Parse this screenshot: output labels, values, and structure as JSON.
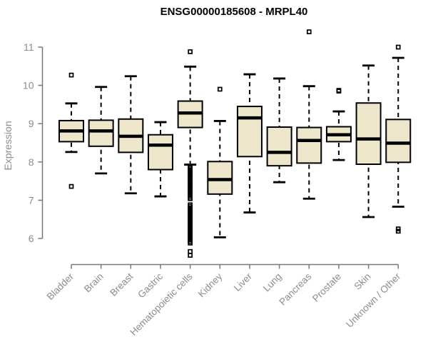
{
  "window": {
    "background": "#FFFFFF"
  },
  "chart_data": {
    "type": "boxplot",
    "title": "ENSG00000185608 - MRPL40",
    "xlabel": "",
    "ylabel": "Expression",
    "y_ticks": [
      6,
      7,
      8,
      9,
      10,
      11
    ],
    "ylim": [
      6,
      11
    ],
    "grid": false,
    "legend_position": "none",
    "categories": [
      "Bladder",
      "Brain",
      "Breast",
      "Gastric",
      "Hematopoietic cells",
      "Kidney",
      "Liver",
      "Lung",
      "Pancreas",
      "Prostate",
      "Skin",
      "Unknown / Other"
    ],
    "series": [
      {
        "name": "Bladder",
        "low": 8.26,
        "q1": 8.53,
        "median": 8.81,
        "q3": 9.08,
        "high": 9.53,
        "outliers": [
          10.27,
          7.36
        ]
      },
      {
        "name": "Brain",
        "low": 7.7,
        "q1": 8.41,
        "median": 8.81,
        "q3": 9.09,
        "high": 9.96,
        "outliers": []
      },
      {
        "name": "Breast",
        "low": 7.18,
        "q1": 8.25,
        "median": 8.67,
        "q3": 9.12,
        "high": 10.24,
        "outliers": []
      },
      {
        "name": "Gastric",
        "low": 7.1,
        "q1": 7.8,
        "median": 8.44,
        "q3": 8.71,
        "high": 9.04,
        "outliers": []
      },
      {
        "name": "Hematopoietic cells",
        "low": 7.93,
        "q1": 8.9,
        "median": 9.28,
        "q3": 9.59,
        "high": 10.49,
        "outliers": [
          10.88,
          7.88,
          7.84,
          7.8,
          7.76,
          7.72,
          7.68,
          7.64,
          7.6,
          7.56,
          7.52,
          7.48,
          7.44,
          7.4,
          7.36,
          7.32,
          7.28,
          7.24,
          7.2,
          7.16,
          7.12,
          7.08,
          7.04,
          6.88,
          6.84,
          6.8,
          6.76,
          6.72,
          6.68,
          6.64,
          6.6,
          6.56,
          6.52,
          6.48,
          6.44,
          6.4,
          6.36,
          6.32,
          6.28,
          6.24,
          6.2,
          6.16,
          6.12,
          6.08,
          6.04,
          6.0,
          5.96,
          5.92,
          5.88,
          5.66,
          5.56
        ]
      },
      {
        "name": "Kidney",
        "low": 6.03,
        "q1": 7.16,
        "median": 7.54,
        "q3": 8.01,
        "high": 9.07,
        "outliers": [
          9.9
        ]
      },
      {
        "name": "Liver",
        "low": 6.68,
        "q1": 8.14,
        "median": 9.15,
        "q3": 9.45,
        "high": 10.29,
        "outliers": []
      },
      {
        "name": "Lung",
        "low": 7.47,
        "q1": 7.9,
        "median": 8.25,
        "q3": 8.91,
        "high": 10.18,
        "outliers": []
      },
      {
        "name": "Pancreas",
        "low": 7.04,
        "q1": 7.97,
        "median": 8.56,
        "q3": 8.9,
        "high": 9.98,
        "outliers": [
          11.4
        ]
      },
      {
        "name": "Prostate",
        "low": 8.05,
        "q1": 8.53,
        "median": 8.71,
        "q3": 8.92,
        "high": 9.32,
        "outliers": [
          9.85,
          9.87
        ]
      },
      {
        "name": "Skin",
        "low": 6.56,
        "q1": 7.94,
        "median": 8.6,
        "q3": 9.54,
        "high": 10.52,
        "outliers": []
      },
      {
        "name": "Unknown / Other",
        "low": 6.83,
        "q1": 7.99,
        "median": 8.49,
        "q3": 9.11,
        "high": 10.72,
        "outliers": [
          11.0,
          6.25,
          6.19
        ]
      }
    ],
    "colors": {
      "box_fill": "#EDE6CB",
      "box_stroke": "#000000",
      "median": "#000000",
      "whisker": "#000000",
      "outlier": "#000000",
      "axis_line": "#787878",
      "axis_text": "#8C8C8C",
      "title": "#000000",
      "background": "#FFFFFF"
    }
  }
}
